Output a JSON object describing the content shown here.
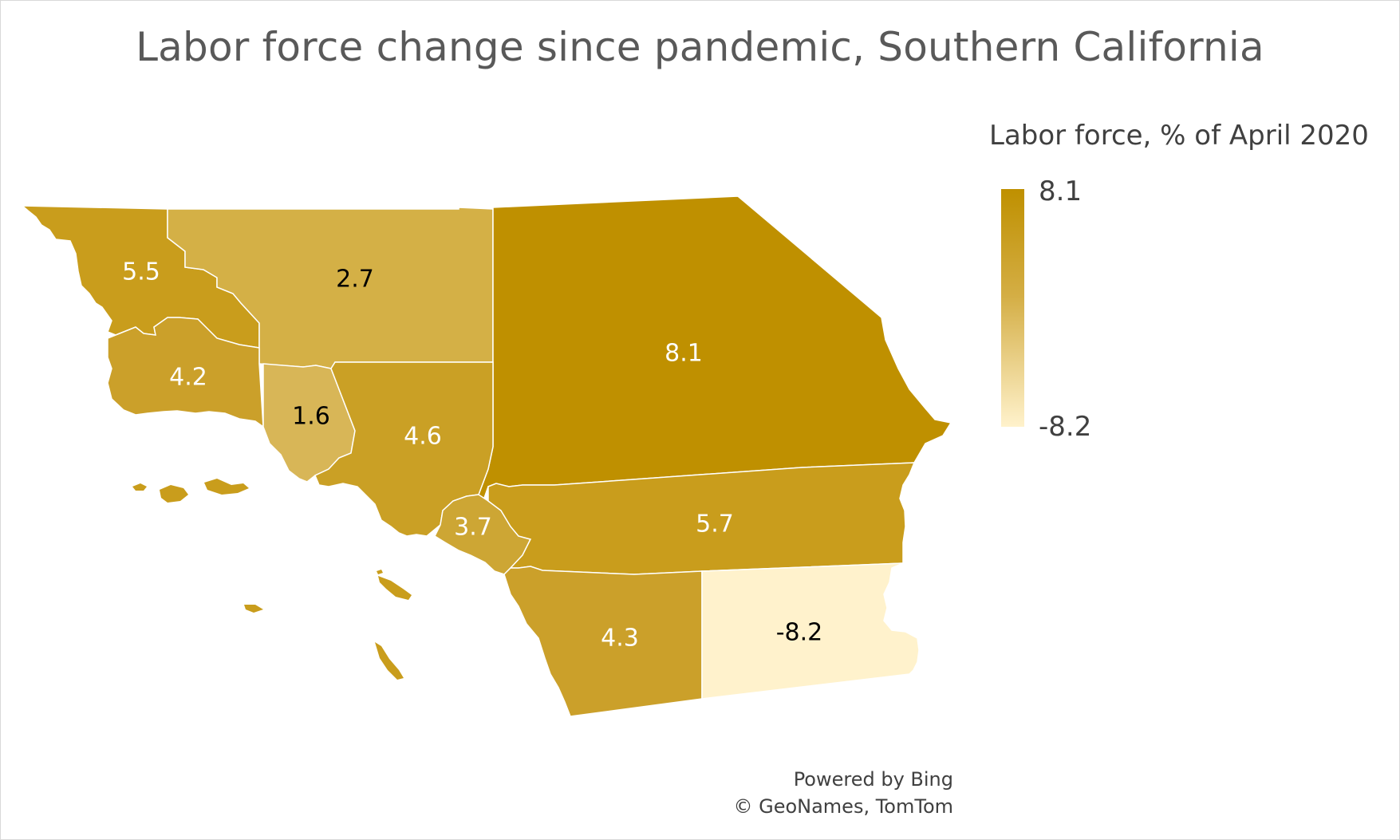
{
  "title": "Labor force change since pandemic, Southern California",
  "legend": {
    "title": "Labor force, % of April 2020",
    "max_label": "8.1",
    "min_label": "-8.2",
    "max_color": "#bf9000",
    "min_color": "#fff2cc"
  },
  "regions": [
    {
      "value": "5.5",
      "color": "#c99d1c",
      "label_color": "#ffffff"
    },
    {
      "value": "2.7",
      "color": "#d4b046",
      "label_color": "#000000"
    },
    {
      "value": "8.1",
      "color": "#bf9000",
      "label_color": "#ffffff"
    },
    {
      "value": "4.2",
      "color": "#cba02a",
      "label_color": "#ffffff"
    },
    {
      "value": "1.6",
      "color": "#d8b657",
      "label_color": "#000000"
    },
    {
      "value": "4.6",
      "color": "#caa025",
      "label_color": "#ffffff"
    },
    {
      "value": "3.7",
      "color": "#cda634",
      "label_color": "#ffffff"
    },
    {
      "value": "5.7",
      "color": "#c99d1c",
      "label_color": "#ffffff"
    },
    {
      "value": "4.3",
      "color": "#cba02a",
      "label_color": "#ffffff"
    },
    {
      "value": "-8.2",
      "color": "#fff2cc",
      "label_color": "#000000"
    }
  ],
  "island_color": "#c99d1c",
  "credits": {
    "line1": "Powered by Bing",
    "line2": "© GeoNames, TomTom"
  }
}
